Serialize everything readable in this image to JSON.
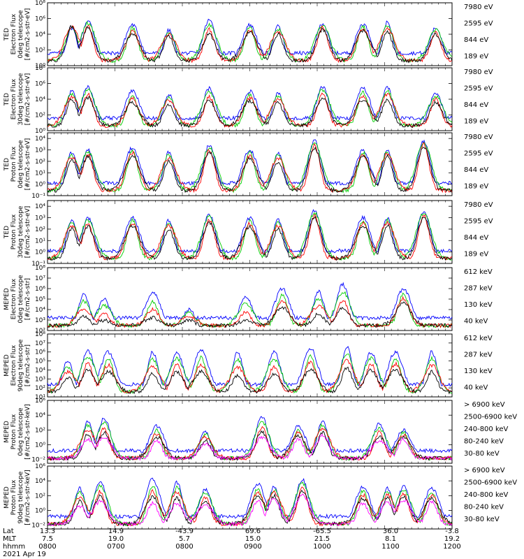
{
  "date": "2021 Apr 19",
  "footer": {
    "row_labels": [
      "Lat",
      "MLT",
      "hhmm"
    ],
    "columns": [
      {
        "lat": "13.3",
        "mlt": "7.5",
        "hhmm": "0800"
      },
      {
        "lat": "14.9",
        "mlt": "19.0",
        "hhmm": "0700"
      },
      {
        "lat": "-43.9",
        "mlt": "5.7",
        "hhmm": "0800"
      },
      {
        "lat": "69.6",
        "mlt": "15.0",
        "hhmm": "0900"
      },
      {
        "lat": "-65.5",
        "mlt": "21.5",
        "hhmm": "1000"
      },
      {
        "lat": "36.0",
        "mlt": "8.1",
        "hhmm": "1100"
      },
      {
        "lat": "-3.8",
        "mlt": "19.2",
        "hhmm": "1200"
      }
    ]
  },
  "colors": {
    "blue": "#0000ff",
    "red": "#ff0000",
    "green": "#00cc00",
    "black": "#000000",
    "magenta": "#ff00ff"
  },
  "chart_data": [
    {
      "type": "line",
      "ylabel": [
        "TED",
        "Electron Flux",
        "0deg telescope",
        "[#/cm2-s-str-eV]"
      ],
      "yticks": [
        {
          "exp": 8,
          "label": "10⁸"
        },
        {
          "exp": 6,
          "label": "10⁶"
        },
        {
          "exp": 4,
          "label": "10⁴"
        },
        {
          "exp": 2,
          "label": "10²"
        },
        {
          "exp": 0,
          "label": "10⁰"
        }
      ],
      "ylim": [
        0,
        8
      ],
      "scale": "log",
      "legend": [
        {
          "name": "7980 eV",
          "color": "black"
        },
        {
          "name": "2595 eV",
          "color": "red"
        },
        {
          "name": "844 eV",
          "color": "green"
        },
        {
          "name": "189 eV",
          "color": "blue"
        }
      ],
      "bump_centers": [
        0.06,
        0.1,
        0.21,
        0.3,
        0.4,
        0.5,
        0.57,
        0.68,
        0.78,
        0.84,
        0.96
      ],
      "peaks": [
        [
          4.8,
          5.0
        ],
        [
          5.7,
          4.8
        ],
        [
          5.2,
          4.0
        ],
        [
          4.5,
          3.8
        ],
        [
          5.8,
          4.0
        ],
        [
          5.2,
          4.2
        ],
        [
          5.0,
          4.0
        ],
        [
          5.4,
          4.6
        ],
        [
          5.3,
          4.5
        ],
        [
          5.5,
          4.3
        ],
        [
          4.8,
          4.0
        ]
      ]
    },
    {
      "type": "line",
      "ylabel": [
        "TED",
        "Electron Flux",
        "30deg telescope",
        "[#/cm2-s-str-eV]"
      ],
      "yticks": [
        {
          "exp": 8,
          "label": "10⁸"
        },
        {
          "exp": 6,
          "label": "10⁶"
        },
        {
          "exp": 4,
          "label": "10⁴"
        },
        {
          "exp": 2,
          "label": "10²"
        },
        {
          "exp": 0,
          "label": "10⁰"
        }
      ],
      "ylim": [
        0,
        8
      ],
      "scale": "log",
      "legend": [
        {
          "name": "7980 eV",
          "color": "black"
        },
        {
          "name": "2595 eV",
          "color": "red"
        },
        {
          "name": "844 eV",
          "color": "green"
        },
        {
          "name": "189 eV",
          "color": "blue"
        }
      ],
      "bump_centers": [
        0.06,
        0.1,
        0.21,
        0.3,
        0.4,
        0.5,
        0.57,
        0.68,
        0.78,
        0.84,
        0.96
      ],
      "peaks": [
        [
          5.0,
          4.0
        ],
        [
          5.6,
          4.2
        ],
        [
          5.0,
          3.6
        ],
        [
          4.6,
          3.4
        ],
        [
          5.4,
          3.8
        ],
        [
          5.0,
          3.8
        ],
        [
          4.8,
          3.6
        ],
        [
          5.6,
          4.2
        ],
        [
          5.4,
          4.0
        ],
        [
          5.6,
          4.0
        ],
        [
          4.8,
          3.6
        ]
      ]
    },
    {
      "type": "line",
      "ylabel": [
        "TED",
        "Proton Flux",
        "0deg telescope",
        "[#/cm2-s-str-eV]"
      ],
      "yticks": [
        {
          "exp": 4,
          "label": "10⁴"
        },
        {
          "exp": 3,
          "label": "10³"
        },
        {
          "exp": 2,
          "label": "10²"
        },
        {
          "exp": 1,
          "label": "10¹"
        },
        {
          "exp": 0,
          "label": "10⁰"
        },
        {
          "exp": -1,
          "label": "10⁻¹"
        }
      ],
      "ylim": [
        -1,
        4.5
      ],
      "scale": "log",
      "legend": [
        {
          "name": "7980 eV",
          "color": "black"
        },
        {
          "name": "2595 eV",
          "color": "red"
        },
        {
          "name": "844 eV",
          "color": "green"
        },
        {
          "name": "189 eV",
          "color": "blue"
        }
      ],
      "bump_centers": [
        0.06,
        0.1,
        0.21,
        0.3,
        0.4,
        0.5,
        0.57,
        0.66,
        0.78,
        0.84,
        0.93
      ],
      "peaks": [
        [
          2.8,
          2.2
        ],
        [
          3.0,
          2.4
        ],
        [
          3.2,
          2.5
        ],
        [
          2.8,
          2.0
        ],
        [
          3.4,
          2.8
        ],
        [
          3.0,
          2.2
        ],
        [
          2.8,
          2.0
        ],
        [
          3.8,
          3.2
        ],
        [
          3.0,
          2.4
        ],
        [
          3.0,
          2.4
        ],
        [
          3.8,
          3.3
        ]
      ]
    },
    {
      "type": "line",
      "ylabel": [
        "TED",
        "Proton Flux",
        "30deg telescope",
        "[#/cm2-s-str-eV]"
      ],
      "yticks": [
        {
          "exp": 4,
          "label": "10⁴"
        },
        {
          "exp": 3,
          "label": "10³"
        },
        {
          "exp": 2,
          "label": "10²"
        },
        {
          "exp": 1,
          "label": "10¹"
        },
        {
          "exp": 0,
          "label": "10⁰"
        },
        {
          "exp": -1,
          "label": "10⁻¹"
        }
      ],
      "ylim": [
        -1,
        4.5
      ],
      "scale": "log",
      "legend": [
        {
          "name": "7980 eV",
          "color": "black"
        },
        {
          "name": "2595 eV",
          "color": "red"
        },
        {
          "name": "844 eV",
          "color": "green"
        },
        {
          "name": "189 eV",
          "color": "blue"
        }
      ],
      "bump_centers": [
        0.06,
        0.1,
        0.21,
        0.3,
        0.4,
        0.5,
        0.57,
        0.66,
        0.78,
        0.84,
        0.93
      ],
      "peaks": [
        [
          2.8,
          2.0
        ],
        [
          3.0,
          2.2
        ],
        [
          3.0,
          2.3
        ],
        [
          2.8,
          2.0
        ],
        [
          3.3,
          2.6
        ],
        [
          3.0,
          2.2
        ],
        [
          2.8,
          2.0
        ],
        [
          3.6,
          3.0
        ],
        [
          3.0,
          2.3
        ],
        [
          3.0,
          2.3
        ],
        [
          3.6,
          3.0
        ]
      ]
    },
    {
      "type": "line",
      "ylabel": [
        "MEPED",
        "Electron Flux",
        "0deg telescope",
        "[#/cm2-s-str]"
      ],
      "yticks": [
        {
          "exp": 8,
          "label": "10⁸"
        },
        {
          "exp": 7,
          "label": "10⁷"
        },
        {
          "exp": 6,
          "label": "10⁶"
        },
        {
          "exp": 5,
          "label": "10⁵"
        },
        {
          "exp": 4,
          "label": "10⁴"
        },
        {
          "exp": 3,
          "label": "10³"
        },
        {
          "exp": 2,
          "label": "10²"
        }
      ],
      "ylim": [
        2,
        8
      ],
      "scale": "log",
      "legend": [
        {
          "name": "612 keV",
          "color": "black"
        },
        {
          "name": "287 keV",
          "color": "red"
        },
        {
          "name": "130 keV",
          "color": "green"
        },
        {
          "name": "40 keV",
          "color": "blue"
        }
      ],
      "bump_centers": [
        0.09,
        0.14,
        0.26,
        0.35,
        0.49,
        0.58,
        0.67,
        0.73,
        0.88
      ],
      "peaks": [
        [
          5.5,
          3.4
        ],
        [
          5.0,
          3.0
        ],
        [
          5.6,
          3.2
        ],
        [
          4.0,
          3.0
        ],
        [
          5.3,
          3.0
        ],
        [
          6.0,
          4.2
        ],
        [
          5.8,
          3.6
        ],
        [
          6.4,
          4.2
        ],
        [
          6.0,
          4.6
        ]
      ]
    },
    {
      "type": "line",
      "ylabel": [
        "MEPED",
        "Electron Flux",
        "90deg telescope",
        "[#/cm2-s-str]"
      ],
      "yticks": [
        {
          "exp": 8,
          "label": "10⁸"
        },
        {
          "exp": 7,
          "label": "10⁷"
        },
        {
          "exp": 6,
          "label": "10⁶"
        },
        {
          "exp": 5,
          "label": "10⁵"
        },
        {
          "exp": 4,
          "label": "10⁴"
        },
        {
          "exp": 3,
          "label": "10³"
        },
        {
          "exp": 2,
          "label": "10²"
        },
        {
          "exp": 1,
          "label": "10¹"
        }
      ],
      "ylim": [
        1,
        8
      ],
      "scale": "log",
      "legend": [
        {
          "name": "612 keV",
          "color": "black"
        },
        {
          "name": "287 keV",
          "color": "red"
        },
        {
          "name": "130 keV",
          "color": "green"
        },
        {
          "name": "40 keV",
          "color": "blue"
        }
      ],
      "bump_centers": [
        0.05,
        0.1,
        0.15,
        0.26,
        0.32,
        0.38,
        0.47,
        0.56,
        0.65,
        0.74,
        0.8,
        0.86,
        0.95
      ],
      "peaks": [
        [
          5.0,
          3.2
        ],
        [
          6.2,
          4.0
        ],
        [
          6.0,
          3.8
        ],
        [
          6.0,
          3.6
        ],
        [
          6.0,
          3.8
        ],
        [
          6.2,
          3.8
        ],
        [
          6.0,
          3.4
        ],
        [
          6.0,
          3.6
        ],
        [
          6.4,
          4.0
        ],
        [
          6.6,
          4.2
        ],
        [
          6.0,
          4.0
        ],
        [
          6.0,
          4.0
        ],
        [
          6.0,
          3.8
        ]
      ]
    },
    {
      "type": "line",
      "ylabel": [
        "MEPED",
        "Proton Flux",
        "0deg telescope",
        "[#/cm2-s-str-keV]"
      ],
      "yticks": [
        {
          "exp": 6,
          "label": "10⁶"
        },
        {
          "exp": 4,
          "label": "10⁴"
        },
        {
          "exp": 2,
          "label": "10²"
        },
        {
          "exp": 0,
          "label": "10⁰"
        },
        {
          "exp": -2,
          "label": "10⁻²"
        }
      ],
      "ylim": [
        -2.5,
        6
      ],
      "scale": "log",
      "legend": [
        {
          "name": "> 6900 keV",
          "color": "magenta"
        },
        {
          "name": "2500-6900 keV",
          "color": "black"
        },
        {
          "name": "240-800 keV",
          "color": "red"
        },
        {
          "name": "80-240 keV",
          "color": "green"
        },
        {
          "name": "30-80 keV",
          "color": "blue"
        }
      ],
      "bump_centers": [
        0.1,
        0.14,
        0.27,
        0.39,
        0.53,
        0.62,
        0.68,
        0.82,
        0.88
      ],
      "peaks": [
        [
          3.2,
          0.8
        ],
        [
          3.6,
          1.0
        ],
        [
          2.5,
          0.5
        ],
        [
          1.8,
          0.2
        ],
        [
          3.8,
          1.0
        ],
        [
          2.5,
          0.8
        ],
        [
          3.2,
          1.2
        ],
        [
          2.8,
          0.6
        ],
        [
          2.0,
          0.8
        ]
      ]
    },
    {
      "type": "line",
      "ylabel": [
        "MEPED",
        "Proton Flux",
        "90deg telescope",
        "[#/cm2-s-str-keV]"
      ],
      "yticks": [
        {
          "exp": 6,
          "label": "10⁶"
        },
        {
          "exp": 4,
          "label": "10⁴"
        },
        {
          "exp": 2,
          "label": "10²"
        },
        {
          "exp": 0,
          "label": "10⁰"
        },
        {
          "exp": -2,
          "label": "10⁻²"
        }
      ],
      "ylim": [
        -2.5,
        6
      ],
      "scale": "log",
      "legend": [
        {
          "name": "> 6900 keV",
          "color": "magenta"
        },
        {
          "name": "2500-6900 keV",
          "color": "black"
        },
        {
          "name": "240-800 keV",
          "color": "red"
        },
        {
          "name": "80-240 keV",
          "color": "green"
        },
        {
          "name": "30-80 keV",
          "color": "blue"
        }
      ],
      "bump_centers": [
        0.08,
        0.13,
        0.26,
        0.32,
        0.39,
        0.52,
        0.56,
        0.63,
        0.78,
        0.84,
        0.88,
        0.95
      ],
      "peaks": [
        [
          3.0,
          0.6
        ],
        [
          4.0,
          1.2
        ],
        [
          4.2,
          1.0
        ],
        [
          3.8,
          1.0
        ],
        [
          2.8,
          0.8
        ],
        [
          3.6,
          1.4
        ],
        [
          3.2,
          1.6
        ],
        [
          4.2,
          2.0
        ],
        [
          3.2,
          1.0
        ],
        [
          3.0,
          1.2
        ],
        [
          3.2,
          1.4
        ],
        [
          3.0,
          1.2
        ]
      ]
    }
  ]
}
